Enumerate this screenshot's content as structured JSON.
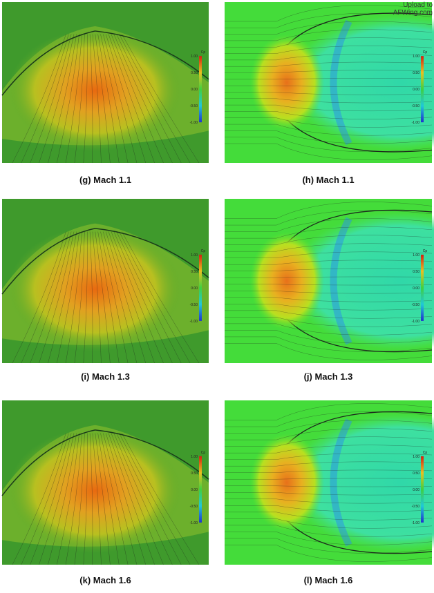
{
  "watermark": [
    "Upload to",
    "AFWing.com"
  ],
  "colorbar": {
    "title": "Cp",
    "labels": [
      "1.00",
      "0.50",
      "0.00",
      "-0.50",
      "-1.00"
    ]
  },
  "panels": [
    {
      "caption": "(g) Mach 1.1"
    },
    {
      "caption": "(h) Mach 1.1"
    },
    {
      "caption": "(i) Mach 1.3"
    },
    {
      "caption": "(j) Mach 1.3"
    },
    {
      "caption": "(k) Mach 1.6"
    },
    {
      "caption": "(l) Mach 1.6"
    }
  ]
}
